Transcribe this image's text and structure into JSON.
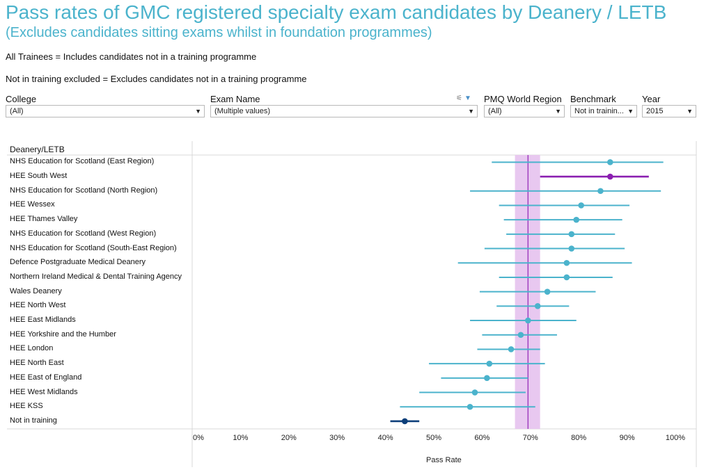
{
  "header": {
    "title": "Pass rates of GMC registered specialty exam candidates by Deanery / LETB",
    "subtitle": "(Excludes candidates sitting exams whilst in foundation programmes)"
  },
  "notes": {
    "all_trainees": "All Trainees = Includes candidates not in a training programme",
    "not_in_training": "Not in training excluded = Excludes candidates not in a training programme"
  },
  "filters": {
    "college": {
      "label": "College",
      "value": "(All)"
    },
    "exam_name": {
      "label": "Exam Name",
      "value": "(Multiple values)",
      "icons": "filter-icon"
    },
    "region": {
      "label": "PMQ World Region",
      "value": "(All)"
    },
    "benchmark": {
      "label": "Benchmark",
      "value": "Not in trainin..."
    },
    "year": {
      "label": "Year",
      "value": "2015"
    }
  },
  "chart_data": {
    "type": "scatter",
    "ylabel": "Deanery/LETB",
    "xlabel": "Pass Rate",
    "xlim": [
      0,
      100
    ],
    "x_ticks": [
      "0%",
      "10%",
      "20%",
      "30%",
      "40%",
      "50%",
      "60%",
      "70%",
      "80%",
      "90%",
      "100%"
    ],
    "benchmark": {
      "value": 69.5,
      "band": [
        66.8,
        72.0
      ],
      "line_color": "#a040c0",
      "band_color": "#e8c8f0"
    },
    "colors": {
      "default": "#4bb3cc",
      "highlight": "#8a1fb0",
      "not_in_training": "#0d3f7a"
    },
    "rows": [
      {
        "name": "NHS Education for Scotland (East Region)",
        "value": 86.5,
        "low": 62.0,
        "high": 97.5,
        "color": "default"
      },
      {
        "name": "HEE South West",
        "value": 86.5,
        "low": 72.0,
        "high": 94.5,
        "color": "highlight"
      },
      {
        "name": "NHS Education for Scotland (North Region)",
        "value": 84.5,
        "low": 57.5,
        "high": 97.0,
        "color": "default"
      },
      {
        "name": "HEE Wessex",
        "value": 80.5,
        "low": 63.5,
        "high": 90.5,
        "color": "default"
      },
      {
        "name": "HEE Thames Valley",
        "value": 79.5,
        "low": 64.5,
        "high": 89.0,
        "color": "default"
      },
      {
        "name": "NHS Education for Scotland (West Region)",
        "value": 78.5,
        "low": 65.0,
        "high": 87.5,
        "color": "default"
      },
      {
        "name": "NHS Education for Scotland (South-East Region)",
        "value": 78.5,
        "low": 60.5,
        "high": 89.5,
        "color": "default"
      },
      {
        "name": "Defence Postgraduate Medical Deanery",
        "value": 77.5,
        "low": 55.0,
        "high": 91.0,
        "color": "default"
      },
      {
        "name": "Northern Ireland Medical & Dental Training Agency",
        "value": 77.5,
        "low": 63.5,
        "high": 87.0,
        "color": "default"
      },
      {
        "name": "Wales Deanery",
        "value": 73.5,
        "low": 59.5,
        "high": 83.5,
        "color": "default"
      },
      {
        "name": "HEE North West",
        "value": 71.5,
        "low": 63.0,
        "high": 78.0,
        "color": "default"
      },
      {
        "name": "HEE East Midlands",
        "value": 69.5,
        "low": 57.5,
        "high": 79.5,
        "color": "default"
      },
      {
        "name": "HEE Yorkshire and the Humber",
        "value": 68.0,
        "low": 60.0,
        "high": 75.5,
        "color": "default"
      },
      {
        "name": "HEE London",
        "value": 66.0,
        "low": 59.0,
        "high": 72.0,
        "color": "default"
      },
      {
        "name": "HEE North East",
        "value": 61.5,
        "low": 49.0,
        "high": 73.0,
        "color": "default"
      },
      {
        "name": "HEE East of England",
        "value": 61.0,
        "low": 51.5,
        "high": 69.5,
        "color": "default"
      },
      {
        "name": "HEE West Midlands",
        "value": 58.5,
        "low": 47.0,
        "high": 69.0,
        "color": "default"
      },
      {
        "name": "HEE KSS",
        "value": 57.5,
        "low": 43.0,
        "high": 71.0,
        "color": "default"
      },
      {
        "name": "Not in training",
        "value": 44.0,
        "low": 41.0,
        "high": 47.0,
        "color": "not_in_training"
      }
    ]
  }
}
